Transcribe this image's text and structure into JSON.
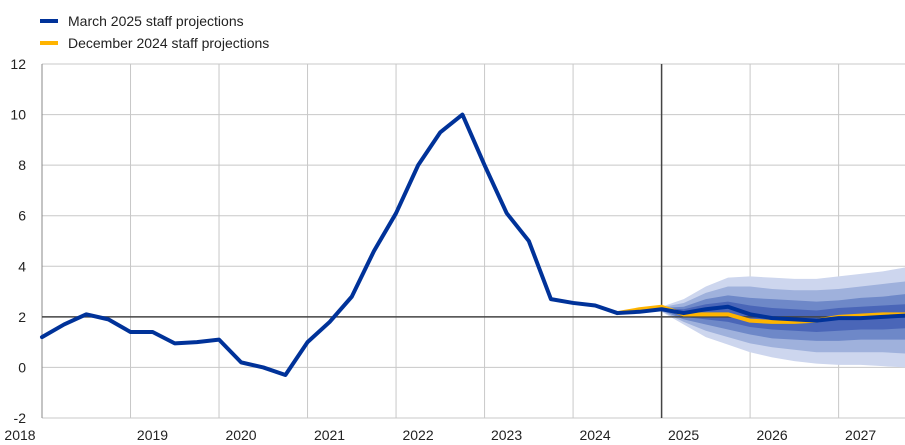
{
  "chart_data": {
    "type": "line",
    "xlabel": "",
    "ylabel": "",
    "ylim": [
      -2,
      12
    ],
    "xlim": [
      2018,
      2027.75
    ],
    "y_ticks": [
      -2,
      0,
      2,
      4,
      6,
      8,
      10,
      12
    ],
    "x_ticks": [
      2018,
      2019,
      2020,
      2021,
      2022,
      2023,
      2024,
      2025,
      2026,
      2027
    ],
    "grid": true,
    "legend_position": "top-left",
    "reference_line_y": 2,
    "projection_start_x": 2025,
    "series": [
      {
        "name": "March 2025 staff projections",
        "color": "#003299",
        "x": [
          2018.0,
          2018.25,
          2018.5,
          2018.75,
          2019.0,
          2019.25,
          2019.5,
          2019.75,
          2020.0,
          2020.25,
          2020.5,
          2020.75,
          2021.0,
          2021.25,
          2021.5,
          2021.75,
          2022.0,
          2022.25,
          2022.5,
          2022.75,
          2023.0,
          2023.25,
          2023.5,
          2023.75,
          2024.0,
          2024.25,
          2024.5,
          2024.75,
          2025.0,
          2025.25,
          2025.5,
          2025.75,
          2026.0,
          2026.25,
          2026.5,
          2026.75,
          2027.0,
          2027.25,
          2027.5,
          2027.75
        ],
        "values": [
          1.2,
          1.7,
          2.1,
          1.9,
          1.4,
          1.4,
          0.95,
          1.0,
          1.1,
          0.2,
          0.0,
          -0.3,
          1.0,
          1.8,
          2.8,
          4.6,
          6.1,
          8.0,
          9.3,
          10.0,
          8.0,
          6.1,
          5.0,
          2.7,
          2.55,
          2.45,
          2.15,
          2.2,
          2.3,
          2.15,
          2.3,
          2.4,
          2.1,
          1.95,
          1.9,
          1.85,
          1.95,
          1.95,
          2.0,
          2.05
        ]
      },
      {
        "name": "December 2024 staff projections",
        "color": "#FFB400",
        "x": [
          2024.5,
          2024.75,
          2025.0,
          2025.25,
          2025.5,
          2025.75,
          2026.0,
          2026.25,
          2026.5,
          2026.75,
          2027.0,
          2027.25,
          2027.5,
          2027.75
        ],
        "values": [
          2.15,
          2.3,
          2.4,
          2.1,
          2.1,
          2.1,
          1.85,
          1.8,
          1.8,
          1.85,
          2.0,
          2.05,
          2.1,
          2.1
        ]
      }
    ],
    "uncertainty_bands": {
      "x": [
        2025.0,
        2025.25,
        2025.5,
        2025.75,
        2026.0,
        2026.25,
        2026.5,
        2026.75,
        2027.0,
        2027.25,
        2027.5,
        2027.75
      ],
      "center": [
        2.3,
        2.15,
        2.3,
        2.4,
        2.1,
        1.95,
        1.9,
        1.85,
        1.95,
        1.95,
        2.0,
        2.05
      ],
      "bands": [
        {
          "color": "#cdd6ee",
          "lower": [
            2.2,
            1.7,
            1.2,
            0.9,
            0.6,
            0.4,
            0.25,
            0.15,
            0.1,
            0.1,
            0.05,
            0.0
          ],
          "upper": [
            2.4,
            2.7,
            3.2,
            3.55,
            3.6,
            3.55,
            3.5,
            3.5,
            3.6,
            3.7,
            3.8,
            3.95
          ]
        },
        {
          "color": "#9fb1dc",
          "lower": [
            2.22,
            1.8,
            1.45,
            1.2,
            0.95,
            0.8,
            0.7,
            0.6,
            0.6,
            0.6,
            0.6,
            0.55
          ],
          "upper": [
            2.38,
            2.55,
            2.95,
            3.2,
            3.2,
            3.1,
            3.05,
            3.05,
            3.1,
            3.2,
            3.3,
            3.4
          ]
        },
        {
          "color": "#6e88c8",
          "lower": [
            2.25,
            1.9,
            1.7,
            1.5,
            1.3,
            1.15,
            1.1,
            1.05,
            1.05,
            1.1,
            1.1,
            1.1
          ],
          "upper": [
            2.35,
            2.4,
            2.7,
            2.85,
            2.75,
            2.7,
            2.65,
            2.6,
            2.65,
            2.75,
            2.8,
            2.9
          ]
        },
        {
          "color": "#4a66b8",
          "lower": [
            2.27,
            2.0,
            1.9,
            1.8,
            1.6,
            1.5,
            1.45,
            1.4,
            1.45,
            1.5,
            1.5,
            1.55
          ],
          "upper": [
            2.33,
            2.3,
            2.5,
            2.6,
            2.45,
            2.35,
            2.3,
            2.25,
            2.35,
            2.4,
            2.45,
            2.5
          ]
        }
      ]
    }
  }
}
